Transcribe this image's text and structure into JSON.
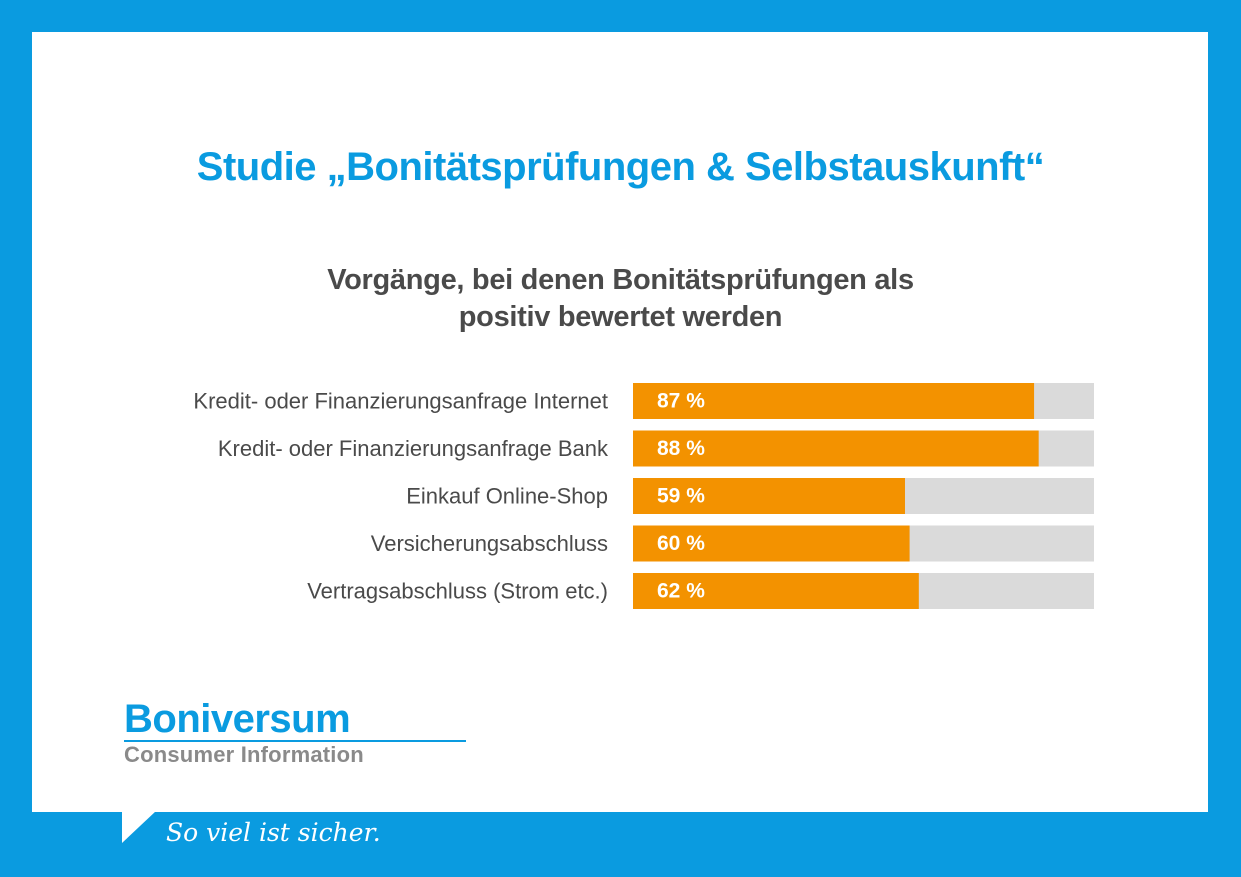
{
  "title": "Studie „Bonitätsprüfungen & Selbstauskunft“",
  "colors": {
    "brand_blue": "#0a9be0",
    "bar_fill": "#f39200",
    "bar_track": "#dadada",
    "label_text": "#4a4a4a"
  },
  "chart_data": {
    "type": "bar",
    "orientation": "horizontal",
    "title_lines": [
      "Vorgänge, bei denen Bonitätsprüfungen als",
      "positiv bewertet werden"
    ],
    "categories": [
      "Kredit- oder Finanzierungsanfrage Internet",
      "Kredit- oder Finanzierungsanfrage Bank",
      "Einkauf Online-Shop",
      "Versicherungsabschluss",
      "Vertragsabschluss (Strom etc.)"
    ],
    "values": [
      87,
      88,
      59,
      60,
      62
    ],
    "value_labels": [
      "87 %",
      "88 %",
      "59 %",
      "60 %",
      "62 %"
    ],
    "xlim": [
      0,
      100
    ],
    "grid": false,
    "legend": "none"
  },
  "brand": {
    "name": "Boniversum",
    "subtitle": "Consumer Information"
  },
  "tagline": "So viel ist sicher."
}
